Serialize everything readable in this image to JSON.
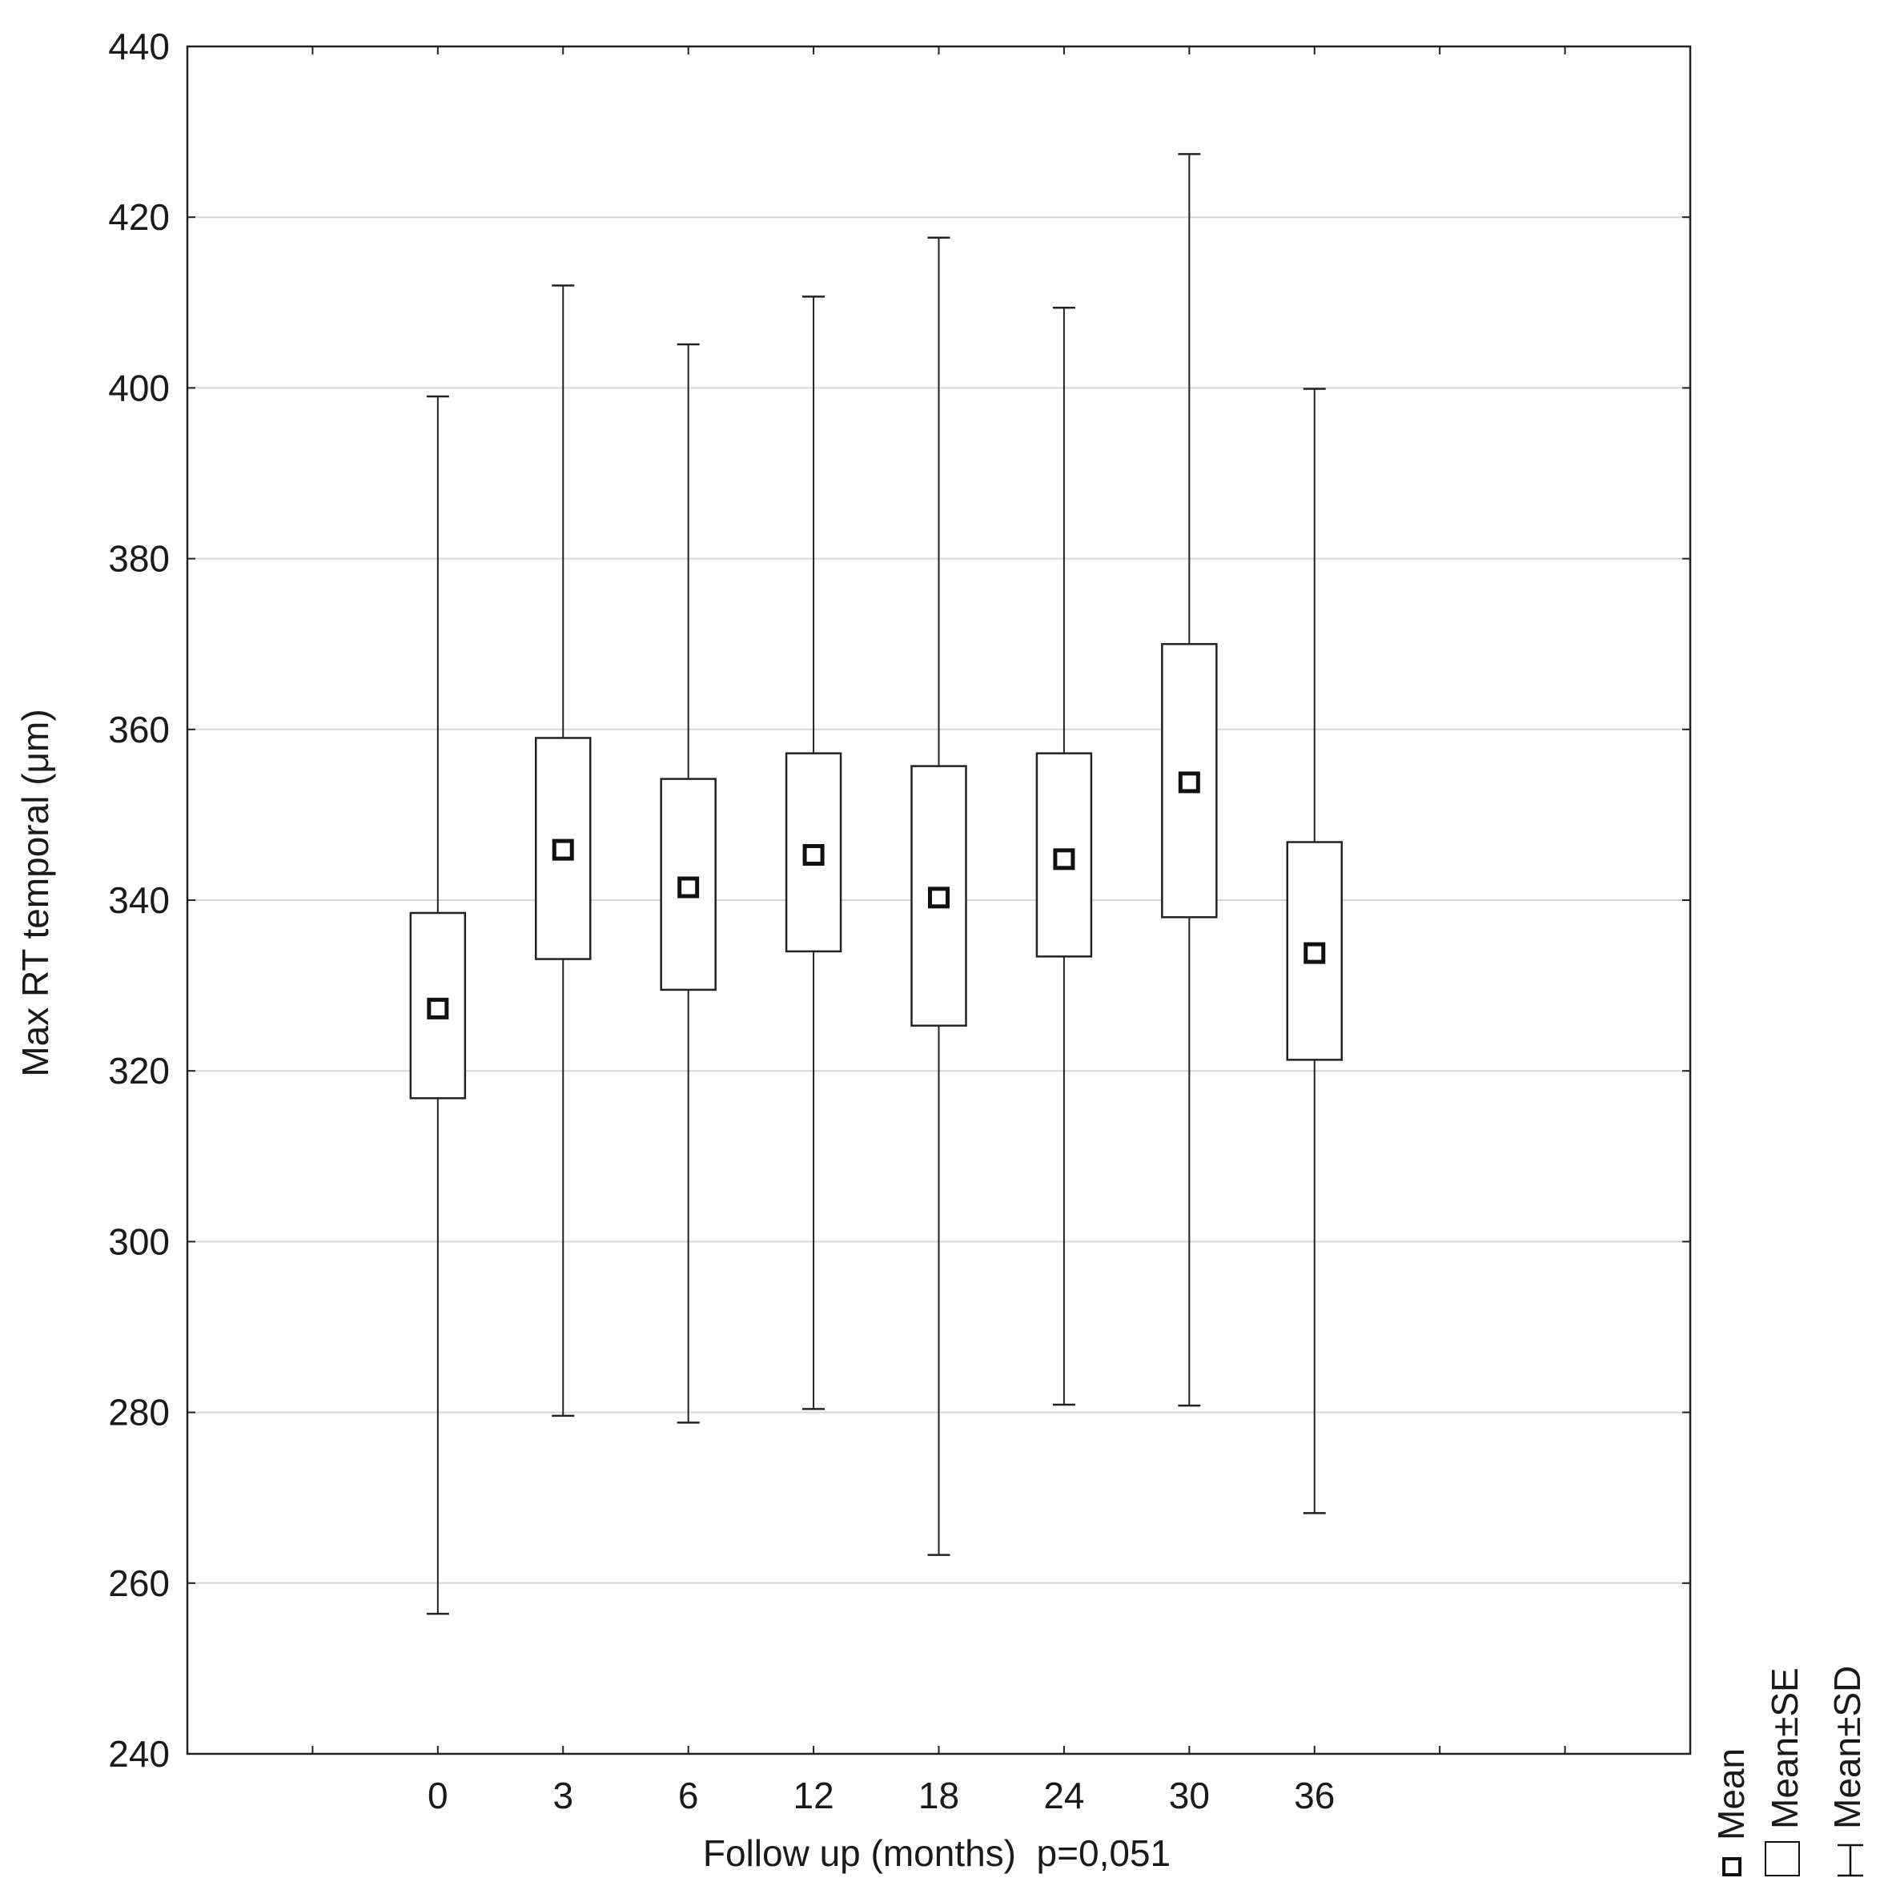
{
  "chart_data": {
    "type": "boxplot",
    "xlabel": "Follow up (months)  p=0,051",
    "ylabel": "Max RT temporal (μm)",
    "ylim": [
      240,
      440
    ],
    "yticks": [
      240,
      260,
      280,
      300,
      320,
      340,
      360,
      380,
      400,
      420,
      440
    ],
    "categories": [
      "0",
      "3",
      "6",
      "12",
      "18",
      "24",
      "30",
      "36"
    ],
    "grid": true,
    "legend_position": "bottom-right, rotated",
    "legend": [
      "Mean",
      "Mean±SE",
      "Mean±SD"
    ],
    "series": [
      {
        "mean": [
          327.3,
          345.9,
          341.5,
          345.3,
          340.3,
          344.8,
          353.8,
          333.8
        ],
        "se_low": [
          316.8,
          333.1,
          329.5,
          334.0,
          325.3,
          333.4,
          338.0,
          321.3
        ],
        "se_high": [
          338.5,
          359.0,
          354.2,
          357.2,
          355.7,
          357.2,
          370.0,
          346.8
        ],
        "sd_low": [
          256.4,
          279.6,
          278.8,
          280.4,
          263.3,
          280.9,
          280.8,
          268.2
        ],
        "sd_high": [
          399.0,
          412.0,
          405.1,
          410.7,
          417.6,
          409.4,
          427.4,
          399.9
        ]
      }
    ]
  }
}
